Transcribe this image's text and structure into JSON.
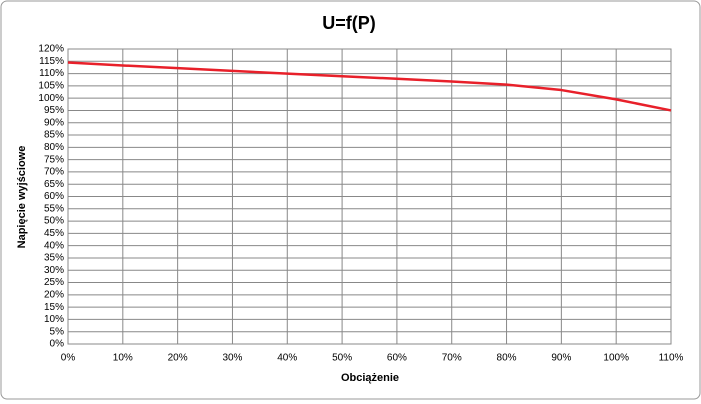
{
  "chart_data": {
    "type": "line",
    "title": "U=f(P)",
    "x_label": "Obciążenie",
    "y_label": "Napięcie wyjściowe",
    "x": [
      0,
      10,
      20,
      30,
      40,
      50,
      60,
      70,
      80,
      90,
      100,
      110
    ],
    "values": [
      114.5,
      113.3,
      112.2,
      111.1,
      110,
      108.9,
      107.9,
      106.8,
      105.5,
      103.3,
      99.5,
      95
    ],
    "color": "#e8202a",
    "xlim": [
      0,
      110
    ],
    "xticks": [
      {
        "value": 0,
        "label": "0%"
      },
      {
        "value": 10,
        "label": "10%"
      },
      {
        "value": 20,
        "label": "20%"
      },
      {
        "value": 30,
        "label": "30%"
      },
      {
        "value": 40,
        "label": "40%"
      },
      {
        "value": 50,
        "label": "50%"
      },
      {
        "value": 60,
        "label": "60%"
      },
      {
        "value": 70,
        "label": "70%"
      },
      {
        "value": 80,
        "label": "80%"
      },
      {
        "value": 90,
        "label": "90%"
      },
      {
        "value": 100,
        "label": "100%"
      },
      {
        "value": 110,
        "label": "110%"
      }
    ],
    "ylim": [
      0,
      120
    ],
    "yticks": [
      {
        "value": 0,
        "label": "0%"
      },
      {
        "value": 5,
        "label": "5%"
      },
      {
        "value": 10,
        "label": "10%"
      },
      {
        "value": 15,
        "label": "15%"
      },
      {
        "value": 20,
        "label": "20%"
      },
      {
        "value": 25,
        "label": "25%"
      },
      {
        "value": 30,
        "label": "30%"
      },
      {
        "value": 35,
        "label": "35%"
      },
      {
        "value": 40,
        "label": "40%"
      },
      {
        "value": 45,
        "label": "45%"
      },
      {
        "value": 50,
        "label": "50%"
      },
      {
        "value": 55,
        "label": "55%"
      },
      {
        "value": 60,
        "label": "60%"
      },
      {
        "value": 65,
        "label": "65%"
      },
      {
        "value": 70,
        "label": "70%"
      },
      {
        "value": 75,
        "label": "75%"
      },
      {
        "value": 80,
        "label": "80%"
      },
      {
        "value": 85,
        "label": "85%"
      },
      {
        "value": 90,
        "label": "90%"
      },
      {
        "value": 95,
        "label": "95%"
      },
      {
        "value": 100,
        "label": "100%"
      },
      {
        "value": 105,
        "label": "105%"
      },
      {
        "value": 110,
        "label": "110%"
      },
      {
        "value": 115,
        "label": "115%"
      },
      {
        "value": 120,
        "label": "120%"
      }
    ],
    "grid": true
  }
}
